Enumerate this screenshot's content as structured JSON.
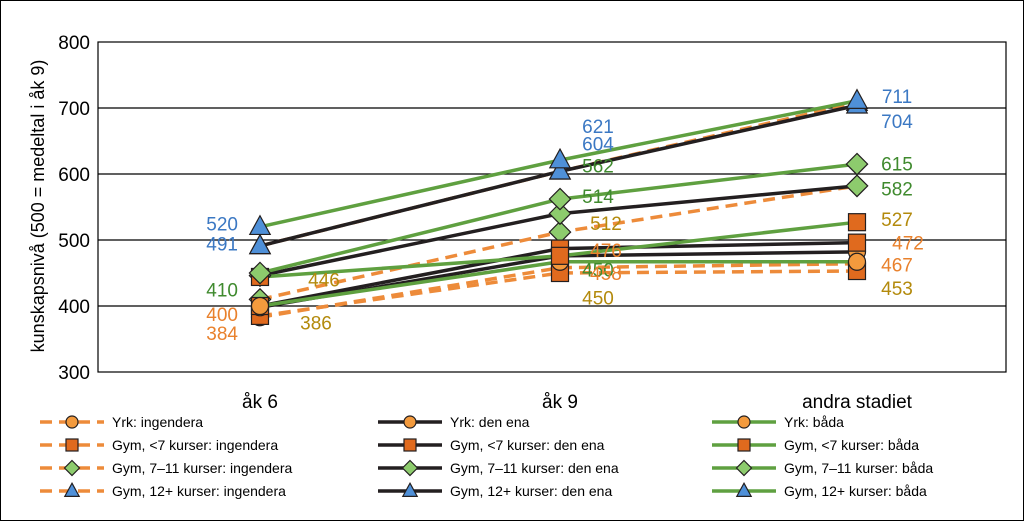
{
  "chart_data": {
    "type": "line",
    "title": "",
    "xlabel": "",
    "ylabel": "kunskapsnivå (500 = medeltal i åk 9)",
    "ylim": [
      300,
      800
    ],
    "yticks": [
      300,
      400,
      500,
      600,
      700,
      800
    ],
    "categories": [
      "åk 6",
      "åk 9",
      "andra stadiet"
    ],
    "grid": true,
    "legend_position": "bottom",
    "colors": {
      "ingendera": "#ED8B3A",
      "den_ena": "#231F20",
      "bada": "#5FA040",
      "marker_orange": "#F39A3D",
      "marker_square": "#E06A1E",
      "marker_diamond": "#8DCB6D",
      "marker_triangle": "#4F90D8",
      "label_blue": "#3B78C3",
      "label_green": "#3F8A2E",
      "label_orange": "#E9812C",
      "label_olive": "#B38A0C"
    },
    "series": [
      {
        "name": "Yrk: ingendera",
        "group": "ingendera",
        "marker": "circle",
        "values": [
          383,
          458,
          464
        ]
      },
      {
        "name": "Gym, <7 kurser: ingendera",
        "group": "ingendera",
        "marker": "square",
        "values": [
          385,
          450,
          453
        ]
      },
      {
        "name": "Gym, 7–11 kurser: ingendera",
        "group": "ingendera",
        "marker": "diamond",
        "values": [
          410,
          512,
          582
        ]
      },
      {
        "name": "Gym, 12+ kurser: ingendera",
        "group": "ingendera",
        "marker": "triangle",
        "values": [
          491,
          604,
          708
        ]
      },
      {
        "name": "Yrk: den ena",
        "group": "den_ena",
        "marker": "circle",
        "values": [
          398,
          476,
          482
        ]
      },
      {
        "name": "Gym, <7 kurser: den ena",
        "group": "den_ena",
        "marker": "square",
        "values": [
          400,
          487,
          496
        ]
      },
      {
        "name": "Gym, 7–11 kurser: den ena",
        "group": "den_ena",
        "marker": "diamond",
        "values": [
          446,
          540,
          582
        ]
      },
      {
        "name": "Gym, 12+ kurser: den ena",
        "group": "den_ena",
        "marker": "triangle",
        "values": [
          491,
          604,
          704
        ]
      },
      {
        "name": "Yrk: båda",
        "group": "bada",
        "marker": "circle",
        "values": [
          400,
          467,
          467
        ]
      },
      {
        "name": "Gym, <7 kurser: båda",
        "group": "bada",
        "marker": "square",
        "values": [
          444,
          476,
          527
        ]
      },
      {
        "name": "Gym, 7–11 kurser: båda",
        "group": "bada",
        "marker": "diamond",
        "values": [
          450,
          562,
          615
        ]
      },
      {
        "name": "Gym, 12+ kurser: båda",
        "group": "bada",
        "marker": "triangle",
        "values": [
          520,
          621,
          711
        ]
      }
    ],
    "data_labels": [
      {
        "text": "520",
        "x": "åk 6",
        "y": 525,
        "color": "label_blue"
      },
      {
        "text": "491",
        "x": "åk 6",
        "y": 495,
        "color": "label_blue"
      },
      {
        "text": "450",
        "x": "åk 6",
        "y": 455,
        "color": "label_green"
      },
      {
        "text": "410",
        "x": "åk 6",
        "y": 425,
        "color": "label_green"
      },
      {
        "text": "446",
        "x": "åk 6",
        "y": 440,
        "color": "label_olive"
      },
      {
        "text": "400",
        "x": "åk 6",
        "y": 388,
        "color": "label_orange"
      },
      {
        "text": "386",
        "x": "åk 6",
        "y": 375,
        "color": "label_olive"
      },
      {
        "text": "384",
        "x": "åk 6",
        "y": 359,
        "color": "label_orange"
      },
      {
        "text": "621",
        "x": "åk 9",
        "y": 673,
        "color": "label_blue"
      },
      {
        "text": "604",
        "x": "åk 9",
        "y": 646,
        "color": "label_blue"
      },
      {
        "text": "562",
        "x": "åk 9",
        "y": 613,
        "color": "label_green"
      },
      {
        "text": "514",
        "x": "åk 9",
        "y": 567,
        "color": "label_green"
      },
      {
        "text": "512",
        "x": "åk 9",
        "y": 526,
        "color": "label_olive"
      },
      {
        "text": "476",
        "x": "åk 9",
        "y": 485,
        "color": "label_orange"
      },
      {
        "text": "458",
        "x": "åk 9",
        "y": 450,
        "color": "label_orange"
      },
      {
        "text": "450",
        "x": "åk 9",
        "y": 413,
        "color": "label_olive"
      },
      {
        "text": "711",
        "x": "andra stadiet",
        "y": 718,
        "color": "label_blue"
      },
      {
        "text": "704",
        "x": "andra stadiet",
        "y": 680,
        "color": "label_blue"
      },
      {
        "text": "615",
        "x": "andra stadiet",
        "y": 616,
        "color": "label_green"
      },
      {
        "text": "582",
        "x": "andra stadiet",
        "y": 578,
        "color": "label_green"
      },
      {
        "text": "527",
        "x": "andra stadiet",
        "y": 532,
        "color": "label_olive"
      },
      {
        "text": "472",
        "x": "andra stadiet",
        "y": 496,
        "color": "label_orange"
      },
      {
        "text": "467",
        "x": "andra stadiet",
        "y": 463,
        "color": "label_orange"
      },
      {
        "text": "453",
        "x": "andra stadiet",
        "y": 427,
        "color": "label_olive"
      }
    ]
  }
}
